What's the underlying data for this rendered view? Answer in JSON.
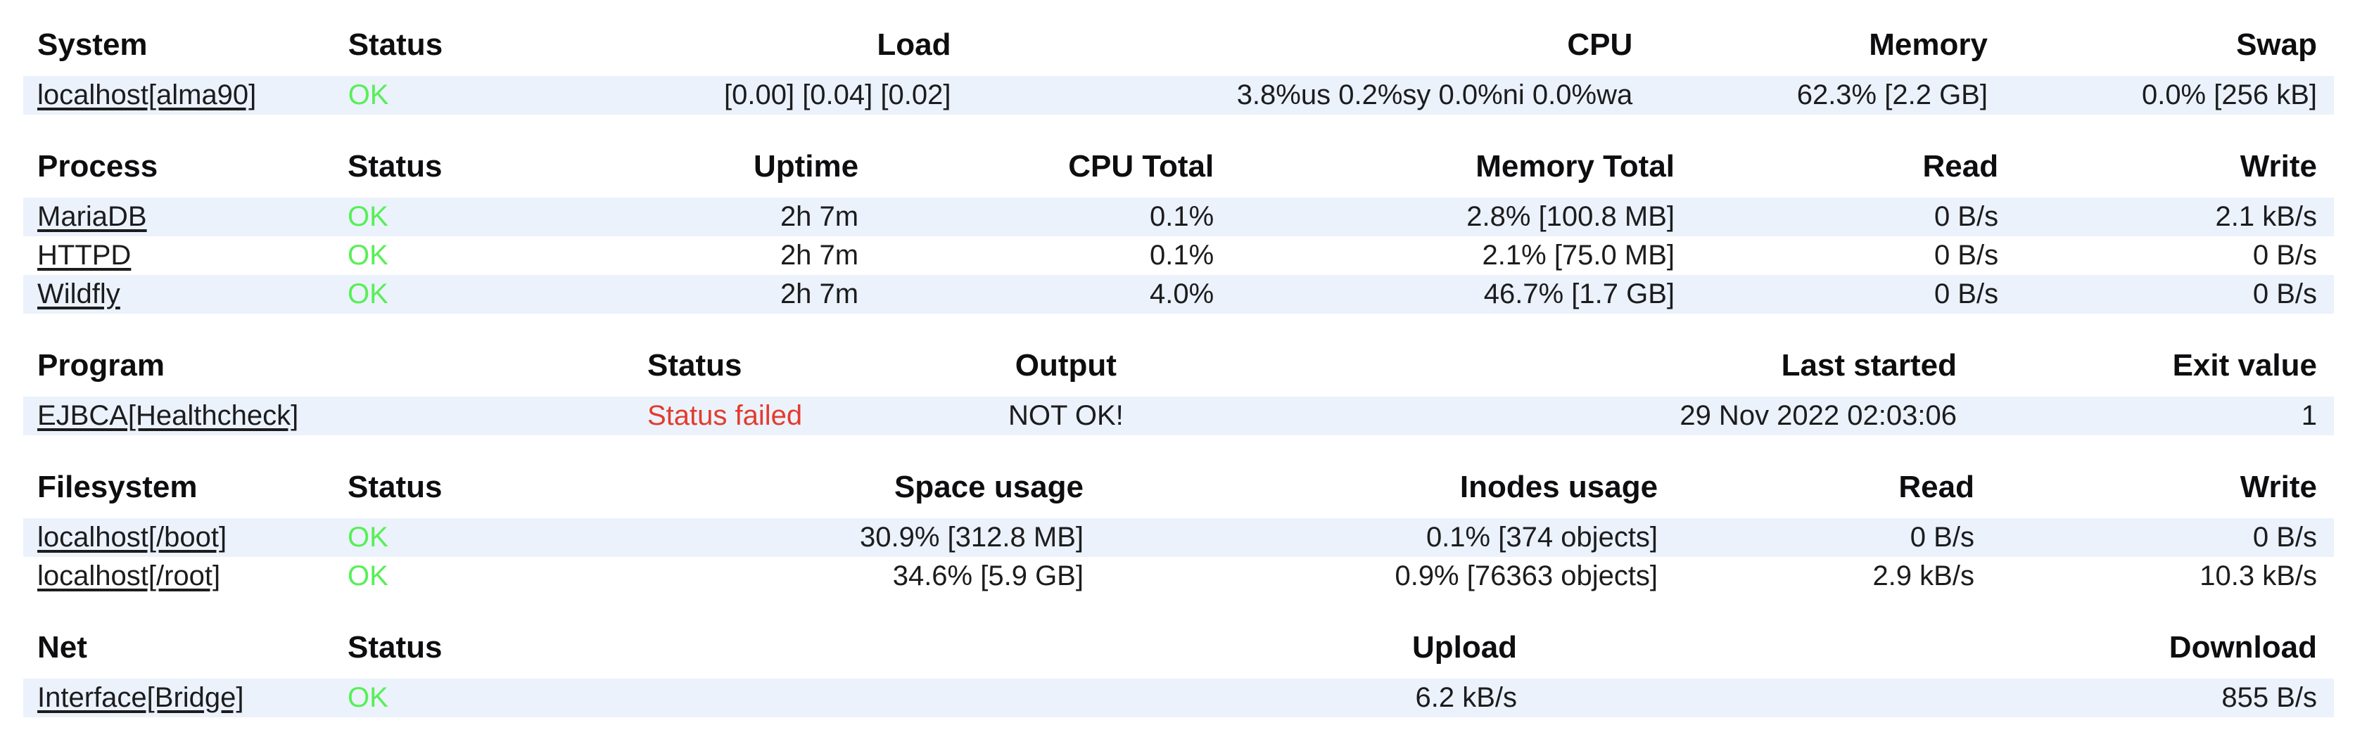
{
  "colors": {
    "row_stripe": "#ebf2fb",
    "status_ok": "#57ef57",
    "status_failed": "#e33b2d"
  },
  "tables": [
    {
      "id": "system",
      "columns": [
        "System",
        "Status",
        "Load",
        "CPU",
        "Memory",
        "Swap"
      ],
      "rows": [
        {
          "name": "localhost[alma90]",
          "status": "OK",
          "status_kind": "ok",
          "values": [
            "[0.00] [0.04] [0.02]",
            "3.8%us 0.2%sy 0.0%ni 0.0%wa",
            "62.3% [2.2 GB]",
            "0.0% [256 kB]"
          ]
        }
      ]
    },
    {
      "id": "process",
      "columns": [
        "Process",
        "Status",
        "Uptime",
        "CPU Total",
        "Memory Total",
        "Read",
        "Write"
      ],
      "rows": [
        {
          "name": "MariaDB",
          "status": "OK",
          "status_kind": "ok",
          "values": [
            "2h 7m",
            "0.1%",
            "2.8% [100.8 MB]",
            "0 B/s",
            "2.1 kB/s"
          ]
        },
        {
          "name": "HTTPD",
          "status": "OK",
          "status_kind": "ok",
          "values": [
            "2h 7m",
            "0.1%",
            "2.1% [75.0 MB]",
            "0 B/s",
            "0 B/s"
          ]
        },
        {
          "name": "Wildfly",
          "status": "OK",
          "status_kind": "ok",
          "values": [
            "2h 7m",
            "4.0%",
            "46.7% [1.7 GB]",
            "0 B/s",
            "0 B/s"
          ]
        }
      ]
    },
    {
      "id": "program",
      "columns": [
        "Program",
        "Status",
        "Output",
        "Last started",
        "Exit value"
      ],
      "rows": [
        {
          "name": "EJBCA[Healthcheck]",
          "status": "Status failed",
          "status_kind": "failed",
          "values": [
            "NOT OK!",
            "29 Nov 2022 02:03:06",
            "1"
          ]
        }
      ]
    },
    {
      "id": "filesystem",
      "columns": [
        "Filesystem",
        "Status",
        "Space usage",
        "Inodes usage",
        "Read",
        "Write"
      ],
      "rows": [
        {
          "name": "localhost[/boot]",
          "status": "OK",
          "status_kind": "ok",
          "values": [
            "30.9% [312.8 MB]",
            "0.1% [374 objects]",
            "0 B/s",
            "0 B/s"
          ]
        },
        {
          "name": "localhost[/root]",
          "status": "OK",
          "status_kind": "ok",
          "values": [
            "34.6% [5.9 GB]",
            "0.9% [76363 objects]",
            "2.9 kB/s",
            "10.3 kB/s"
          ]
        }
      ]
    },
    {
      "id": "net",
      "columns": [
        "Net",
        "Status",
        "Upload",
        "Download"
      ],
      "rows": [
        {
          "name": "Interface[Bridge]",
          "status": "OK",
          "status_kind": "ok",
          "values": [
            "6.2 kB/s",
            "855 B/s"
          ]
        }
      ]
    }
  ]
}
